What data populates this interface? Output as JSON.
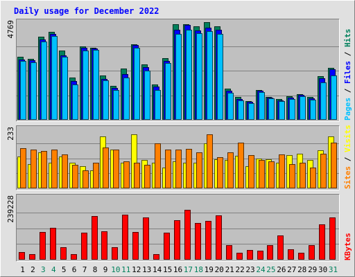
{
  "chart_data": {
    "type": "bar",
    "title": "Daily usage for December 2022",
    "categories": [
      "1",
      "2",
      "3",
      "4",
      "5",
      "6",
      "7",
      "8",
      "9",
      "10",
      "11",
      "12",
      "13",
      "14",
      "15",
      "16",
      "17",
      "18",
      "19",
      "20",
      "21",
      "22",
      "23",
      "24",
      "25",
      "26",
      "27",
      "28",
      "29",
      "30",
      "31"
    ],
    "weekend_days": [
      "3",
      "4",
      "10",
      "11",
      "17",
      "18",
      "24",
      "25",
      "31"
    ],
    "colors": {
      "hits": "#00805c",
      "files": "#0000ff",
      "pages": "#00c0ff",
      "visits": "#ffff00",
      "sites": "#ff8000",
      "kbytes": "#ff0000",
      "title": "#0000ff",
      "weekend_label": "#00805c",
      "panel_bg": "#c0c0c0",
      "page_bg": "#e0e0e0"
    },
    "panels": [
      {
        "max_label": "4769",
        "ylim": [
          0,
          4769
        ],
        "legend": [
          {
            "text": "Pages",
            "color": "#00c0ff"
          },
          {
            "text": " / ",
            "color": "#000000"
          },
          {
            "text": "Files",
            "color": "#0000ff"
          },
          {
            "text": " / ",
            "color": "#000000"
          },
          {
            "text": "Hits",
            "color": "#00805c"
          }
        ],
        "series": [
          {
            "name": "Hits",
            "color": "#00805c",
            "values": [
              3050,
              2950,
              4040,
              4250,
              3350,
              2050,
              3550,
              3500,
              2150,
              1650,
              2500,
              3650,
              2700,
              1700,
              3000,
              4650,
              4620,
              4550,
              4750,
              4520,
              1500,
              1100,
              900,
              1450,
              1100,
              1000,
              1130,
              1250,
              1100,
              2130,
              2520
            ]
          },
          {
            "name": "Files",
            "color": "#0000ff",
            "values": [
              2920,
              2880,
              3900,
              4180,
              3120,
              1870,
              3480,
              3450,
              1970,
              1550,
              2200,
              3620,
              2550,
              1600,
              2860,
              4380,
              4590,
              4320,
              4480,
              4380,
              1400,
              1000,
              880,
              1400,
              1060,
              950,
              1080,
              1220,
              1050,
              2000,
              2450
            ]
          },
          {
            "name": "Pages",
            "color": "#00c0ff",
            "values": [
              2850,
              2800,
              3780,
              4050,
              3050,
              1700,
              3350,
              3380,
              1900,
              1450,
              2050,
              3500,
              2400,
              1450,
              2750,
              4150,
              4350,
              4200,
              4300,
              4150,
              1300,
              950,
              800,
              1350,
              1050,
              900,
              1000,
              1150,
              980,
              1800,
              2150
            ]
          }
        ]
      },
      {
        "max_label": "233",
        "ylim": [
          0,
          233
        ],
        "legend": [
          {
            "text": "Sites",
            "color": "#ff8000"
          },
          {
            "text": " / ",
            "color": "#000000"
          },
          {
            "text": "Visits",
            "color": "#ffff00"
          }
        ],
        "series": [
          {
            "name": "Visits",
            "color": "#ffff00",
            "values": [
              122,
              95,
              138,
              100,
              122,
              100,
              85,
              70,
              200,
              150,
              100,
              210,
              110,
              100,
              80,
              105,
              100,
              98,
              173,
              113,
              110,
              125,
              85,
              115,
              113,
              98,
              128,
              133,
              110,
              148,
              200
            ]
          },
          {
            "name": "Sites",
            "color": "#ff8000",
            "values": [
              155,
              150,
              145,
              150,
              132,
              92,
              70,
              98,
              157,
              150,
              105,
              98,
              90,
              173,
              150,
              150,
              153,
              140,
              209,
              120,
              140,
              176,
              129,
              110,
              105,
              132,
              95,
              98,
              80,
              135,
              177
            ]
          }
        ]
      },
      {
        "max_label": "239228",
        "ylim": [
          0,
          239228
        ],
        "legend": [
          {
            "text": "KBytes",
            "color": "#ff0000"
          }
        ],
        "series": [
          {
            "name": "KBytes",
            "color": "#ff0000",
            "values": [
              28000,
              20000,
              105000,
              120000,
              48000,
              20000,
              102000,
              165000,
              108000,
              48000,
              172000,
              105000,
              160000,
              20000,
              102000,
              150000,
              188000,
              140000,
              148000,
              168000,
              56000,
              26000,
              38000,
              35000,
              55000,
              92000,
              40000,
              26000,
              55000,
              135000,
              160000
            ]
          }
        ]
      }
    ]
  }
}
